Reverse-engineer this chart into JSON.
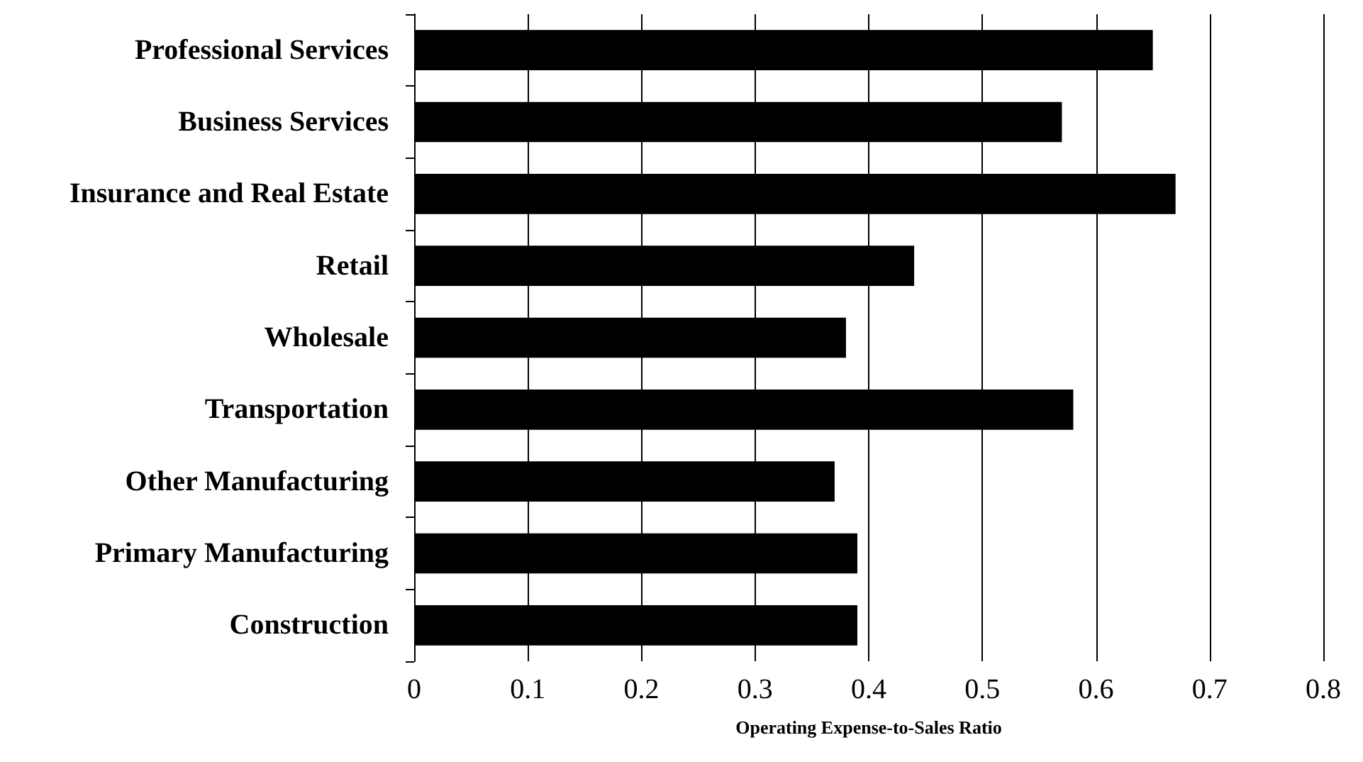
{
  "chart_data": {
    "type": "bar",
    "orientation": "horizontal",
    "xlabel": "Operating Expense-to-Sales Ratio",
    "categories": [
      "Professional Services",
      "Business Services",
      "Insurance and Real Estate",
      "Retail",
      "Wholesale",
      "Transportation",
      "Other Manufacturing",
      "Primary Manufacturing",
      "Construction"
    ],
    "values": [
      0.65,
      0.57,
      0.67,
      0.44,
      0.38,
      0.58,
      0.37,
      0.39,
      0.39
    ],
    "color": "#000000",
    "xlim": [
      0,
      0.8
    ],
    "xticks": [
      0,
      0.1,
      0.2,
      0.3,
      0.4,
      0.5,
      0.6,
      0.7,
      0.8
    ],
    "grid": "x"
  }
}
